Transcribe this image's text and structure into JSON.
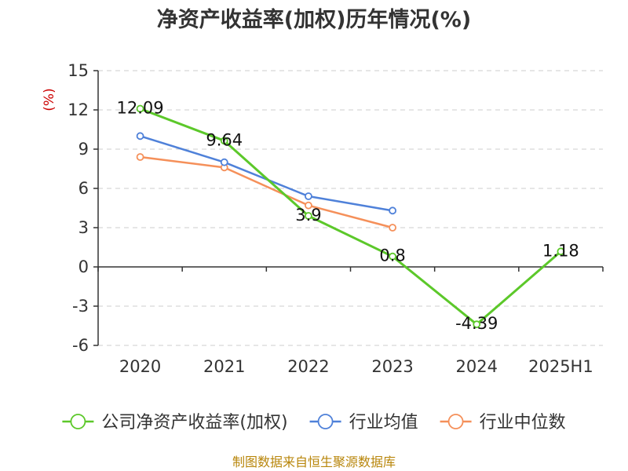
{
  "chart_data": {
    "type": "line",
    "title": "净资产收益率(加权)历年情况(%)",
    "ylabel": "(%)",
    "xlabel": "",
    "categories": [
      "2020",
      "2021",
      "2022",
      "2023",
      "2024",
      "2025H1"
    ],
    "ylim": [
      -6,
      15
    ],
    "yticks": [
      15,
      12,
      9,
      6,
      3,
      0,
      -3,
      -6
    ],
    "grid": true,
    "legend_position": "bottom",
    "series": [
      {
        "name": "公司净资产收益率(加权)",
        "color": "#5cc82a",
        "values": [
          12.09,
          9.64,
          3.9,
          0.8,
          -4.39,
          1.18
        ],
        "labels": [
          "12.09",
          "9.64",
          "3.9",
          "0.8",
          "-4.39",
          "1.18"
        ]
      },
      {
        "name": "行业均值",
        "color": "#4f81d9",
        "values": [
          10.0,
          8.0,
          5.4,
          4.3,
          null,
          null
        ]
      },
      {
        "name": "行业中位数",
        "color": "#f5905a",
        "values": [
          8.4,
          7.6,
          4.7,
          3.0,
          null,
          null
        ]
      }
    ]
  },
  "footer": {
    "source": "制图数据来自恒生聚源数据库"
  }
}
